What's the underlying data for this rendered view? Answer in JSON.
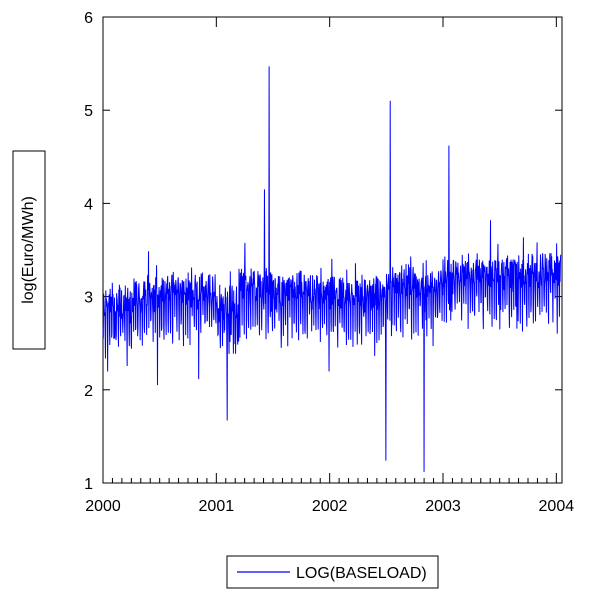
{
  "chart_data": {
    "type": "line",
    "ylabel": "log(Euro/MWh)",
    "xlabel": "",
    "x_ticks": [
      "2000",
      "2001",
      "2002",
      "2003",
      "2004"
    ],
    "y_ticks": [
      "1",
      "2",
      "3",
      "4",
      "5",
      "6"
    ],
    "xlim": [
      2000,
      2004.05
    ],
    "ylim": [
      1,
      6
    ],
    "grid": false,
    "legend_position": "bottom-center",
    "series": [
      {
        "name": "LOG(BASELOAD)",
        "color": "#0000FF",
        "frequency": "daily",
        "start": "2000-01-01",
        "end": "2004-01-15",
        "approx_range": [
          1.12,
          5.47
        ],
        "typical_level": 3.0,
        "notable_points": [
          {
            "date": "2000-06-25",
            "value": 2.05
          },
          {
            "date": "2001-02-05",
            "value": 1.67
          },
          {
            "date": "2001-06-20",
            "value": 5.47
          },
          {
            "date": "2001-06-05",
            "value": 4.15
          },
          {
            "date": "2002-07-01",
            "value": 1.24
          },
          {
            "date": "2002-07-15",
            "value": 5.1
          },
          {
            "date": "2002-11-01",
            "value": 1.12
          },
          {
            "date": "2003-01-20",
            "value": 4.62
          }
        ]
      }
    ]
  }
}
